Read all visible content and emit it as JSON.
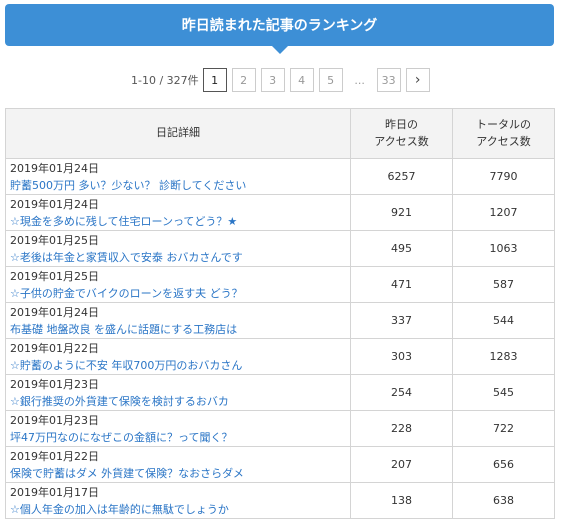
{
  "header": {
    "title": "昨日読まれた記事のランキング"
  },
  "pager": {
    "count": "1-10 / 327件",
    "pages": [
      "1",
      "2",
      "3",
      "4",
      "5"
    ],
    "ellipsis": "...",
    "last": "33",
    "next": "›"
  },
  "table": {
    "columns": [
      "日記詳細",
      "昨日の\nアクセス数",
      "トータルの\nアクセス数"
    ],
    "rows": [
      {
        "date": "2019年01月24日",
        "title": "貯蓄500万円 多い？少ない？ 診断してください",
        "yesterday": "6257",
        "total": "7790"
      },
      {
        "date": "2019年01月24日",
        "title": "☆現金を多めに残して住宅ローンってどう？★",
        "yesterday": "921",
        "total": "1207"
      },
      {
        "date": "2019年01月25日",
        "title": "☆老後は年金と家賃収入で安泰 おバカさんです",
        "yesterday": "495",
        "total": "1063"
      },
      {
        "date": "2019年01月25日",
        "title": "☆子供の貯金でバイクのローンを返す夫 どう？",
        "yesterday": "471",
        "total": "587"
      },
      {
        "date": "2019年01月24日",
        "title": "布基礎 地盤改良 を盛んに話題にする工務店は",
        "yesterday": "337",
        "total": "544"
      },
      {
        "date": "2019年01月22日",
        "title": "☆貯蓄のように不安 年収700万円のおバカさん",
        "yesterday": "303",
        "total": "1283"
      },
      {
        "date": "2019年01月23日",
        "title": "☆銀行推奨の外貨建て保険を検討するおバカ",
        "yesterday": "254",
        "total": "545"
      },
      {
        "date": "2019年01月23日",
        "title": "坪47万円なのになぜこの金額に？って聞く？",
        "yesterday": "228",
        "total": "722"
      },
      {
        "date": "2019年01月22日",
        "title": "保険で貯蓄はダメ 外貨建て保険？なおさらダメ",
        "yesterday": "207",
        "total": "656"
      },
      {
        "date": "2019年01月17日",
        "title": "☆個人年金の加入は年齢的に無駄でしょうか",
        "yesterday": "138",
        "total": "638"
      }
    ]
  }
}
